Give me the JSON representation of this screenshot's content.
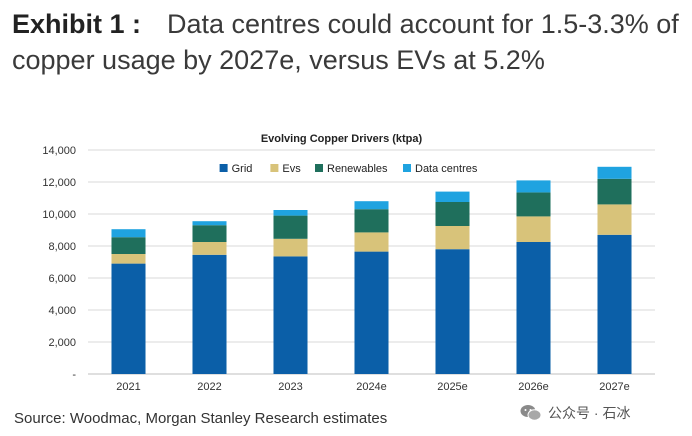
{
  "heading": {
    "exhibit": "Exhibit 1 :",
    "text": "Data centres could account for 1.5-3.3% of copper usage by 2027e, versus EVs at 5.2%"
  },
  "source": "Source: Woodmac, Morgan Stanley Research estimates",
  "watermark": {
    "text": "公众号 · 石冰",
    "icon": "wechat-icon"
  },
  "chart_data": {
    "type": "bar",
    "stacked": true,
    "title": "Evolving Copper Drivers (ktpa)",
    "categories": [
      "2021",
      "2022",
      "2023",
      "2024e",
      "2025e",
      "2026e",
      "2027e"
    ],
    "series": [
      {
        "name": "Grid",
        "color": "#0b5fa8",
        "values": [
          6900,
          7450,
          7350,
          7650,
          7800,
          8250,
          8700
        ]
      },
      {
        "name": "Evs",
        "color": "#d8c37a",
        "values": [
          600,
          800,
          1100,
          1200,
          1450,
          1600,
          1900
        ]
      },
      {
        "name": "Renewables",
        "color": "#1f6f5c",
        "values": [
          1050,
          1050,
          1450,
          1450,
          1500,
          1500,
          1600
        ]
      },
      {
        "name": "Data centres",
        "color": "#1fa3e0",
        "values": [
          500,
          250,
          350,
          500,
          650,
          750,
          750
        ]
      }
    ],
    "yticks": [
      "-",
      "2,000",
      "4,000",
      "6,000",
      "8,000",
      "10,000",
      "12,000",
      "14,000"
    ],
    "ylim": [
      0,
      14000
    ],
    "grid": true,
    "legend": "top"
  }
}
